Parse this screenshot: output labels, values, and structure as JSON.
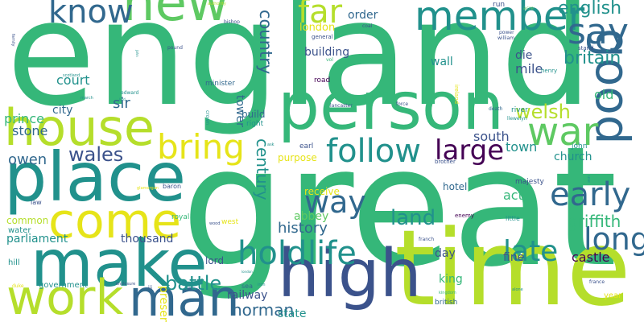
{
  "palette": {
    "dark_purple": "#440154",
    "indigo": "#3b528b",
    "blue": "#31688e",
    "teal": "#21918c",
    "green": "#35b779",
    "light_green": "#5ec962",
    "yellow_green": "#b5de2b",
    "yellow": "#e6e419"
  },
  "words": [
    {
      "text": "england",
      "color": "#35b779"
    },
    {
      "text": "great",
      "color": "#35b779"
    },
    {
      "text": "time",
      "color": "#b5de2b"
    },
    {
      "text": "person",
      "color": "#35b779"
    },
    {
      "text": "house",
      "color": "#b5de2b"
    },
    {
      "text": "place",
      "color": "#21918c"
    },
    {
      "text": "make",
      "color": "#21918c"
    },
    {
      "text": "high",
      "color": "#3b528b"
    },
    {
      "text": "come",
      "color": "#e6e419"
    },
    {
      "text": "work",
      "color": "#b5de2b"
    },
    {
      "text": "man",
      "color": "#31688e"
    },
    {
      "text": "new",
      "color": "#5ec962"
    },
    {
      "text": "good",
      "color": "#31688e"
    },
    {
      "text": "member",
      "color": "#21918c"
    },
    {
      "text": "war",
      "color": "#5ec962"
    },
    {
      "text": "follow",
      "color": "#21918c"
    },
    {
      "text": "hold",
      "color": "#21918c"
    },
    {
      "text": "life",
      "color": "#21918c"
    },
    {
      "text": "far",
      "color": "#b5de2b"
    },
    {
      "text": "say",
      "color": "#31688e"
    },
    {
      "text": "know",
      "color": "#31688e"
    },
    {
      "text": "bring",
      "color": "#e6e419"
    },
    {
      "text": "large",
      "color": "#440154"
    },
    {
      "text": "early",
      "color": "#31688e"
    },
    {
      "text": "long",
      "color": "#31688e"
    },
    {
      "text": "late",
      "color": "#21918c"
    },
    {
      "text": "way",
      "color": "#31688e"
    },
    {
      "text": "country",
      "color": "#31688e"
    },
    {
      "text": "english",
      "color": "#21918c"
    },
    {
      "text": "britain",
      "color": "#21918c"
    },
    {
      "text": "wales",
      "color": "#3b528b"
    },
    {
      "text": "land",
      "color": "#21918c"
    },
    {
      "text": "welsh",
      "color": "#b5de2b"
    },
    {
      "text": "battle",
      "color": "#21918c"
    },
    {
      "text": "history",
      "color": "#31688e"
    },
    {
      "text": "griffith",
      "color": "#35b779"
    },
    {
      "text": "century",
      "color": "#21918c"
    },
    {
      "text": "norman",
      "color": "#31688e"
    },
    {
      "text": "owen",
      "color": "#31688e"
    },
    {
      "text": "prince",
      "color": "#35b779"
    },
    {
      "text": "stone",
      "color": "#31688e"
    },
    {
      "text": "court",
      "color": "#21918c"
    },
    {
      "text": "sir",
      "color": "#31688e"
    },
    {
      "text": "city",
      "color": "#31688e"
    },
    {
      "text": "parliament",
      "color": "#21918c"
    },
    {
      "text": "thousand",
      "color": "#3b528b"
    },
    {
      "text": "south",
      "color": "#3b528b"
    },
    {
      "text": "town",
      "color": "#21918c"
    },
    {
      "text": "church",
      "color": "#21918c"
    },
    {
      "text": "act",
      "color": "#35b779"
    },
    {
      "text": "castle",
      "color": "#440154"
    },
    {
      "text": "old",
      "color": "#35b779"
    },
    {
      "text": "mile",
      "color": "#3b528b"
    },
    {
      "text": "die",
      "color": "#3b528b"
    },
    {
      "text": "order",
      "color": "#31688e"
    },
    {
      "text": "london",
      "color": "#e6e419"
    },
    {
      "text": "building",
      "color": "#3b528b"
    },
    {
      "text": "wall",
      "color": "#21918c"
    },
    {
      "text": "tower",
      "color": "#31688e"
    },
    {
      "text": "build",
      "color": "#31688e"
    },
    {
      "text": "purpose",
      "color": "#e6e419"
    },
    {
      "text": "receive",
      "color": "#e6e419"
    },
    {
      "text": "abbey",
      "color": "#5ec962"
    },
    {
      "text": "hotel",
      "color": "#31688e"
    },
    {
      "text": "day",
      "color": "#3b528b"
    },
    {
      "text": "king",
      "color": "#35b779"
    },
    {
      "text": "fine",
      "color": "#3b528b"
    },
    {
      "text": "railway",
      "color": "#3b528b"
    },
    {
      "text": "state",
      "color": "#21918c"
    },
    {
      "text": "lord",
      "color": "#3b528b"
    },
    {
      "text": "present",
      "color": "#e6e419"
    },
    {
      "text": "common",
      "color": "#b5de2b"
    },
    {
      "text": "water",
      "color": "#21918c"
    },
    {
      "text": "hill",
      "color": "#21918c"
    },
    {
      "text": "government",
      "color": "#21918c"
    },
    {
      "text": "british",
      "color": "#31688e"
    },
    {
      "text": "year",
      "color": "#e6e419"
    },
    {
      "text": "road",
      "color": "#440154"
    },
    {
      "text": "minister",
      "color": "#31688e"
    },
    {
      "text": "earl",
      "color": "#3b528b"
    },
    {
      "text": "right",
      "color": "#21918c"
    },
    {
      "text": "john",
      "color": "#21918c"
    },
    {
      "text": "majesty",
      "color": "#3b528b"
    },
    {
      "text": "royal",
      "color": "#35b779"
    },
    {
      "text": "west",
      "color": "#e6e419"
    },
    {
      "text": "law",
      "color": "#3b528b"
    },
    {
      "text": "baron",
      "color": "#3b528b"
    },
    {
      "text": "little",
      "color": "#21918c"
    },
    {
      "text": "enemy",
      "color": "#440154"
    },
    {
      "text": "general",
      "color": "#3b528b"
    },
    {
      "text": "run",
      "color": "#3b528b"
    },
    {
      "text": "stand",
      "color": "#3b528b"
    },
    {
      "text": "william",
      "color": "#3b528b"
    },
    {
      "text": "power",
      "color": "#3b528b"
    },
    {
      "text": "henry",
      "color": "#21918c"
    },
    {
      "text": "death",
      "color": "#31688e"
    },
    {
      "text": "river",
      "color": "#21918c"
    },
    {
      "text": "llewelyn",
      "color": "#21918c"
    },
    {
      "text": "force",
      "color": "#3b528b"
    },
    {
      "text": "lancaster",
      "color": "#3b528b"
    },
    {
      "text": "brother",
      "color": "#3b528b"
    },
    {
      "text": "france",
      "color": "#3b528b"
    },
    {
      "text": "franch",
      "color": "#3b528b"
    },
    {
      "text": "kingdom",
      "color": "#35b779"
    },
    {
      "text": "scotland",
      "color": "#21918c"
    },
    {
      "text": "edward",
      "color": "#21918c"
    },
    {
      "text": "march",
      "color": "#21918c"
    },
    {
      "text": "pound",
      "color": "#3b528b"
    },
    {
      "text": "bishop",
      "color": "#3b528b"
    },
    {
      "text": "authority",
      "color": "#b5de2b"
    },
    {
      "text": "coal",
      "color": "#3b528b"
    },
    {
      "text": "acre",
      "color": "#5ec962"
    },
    {
      "text": "family",
      "color": "#3b528b"
    },
    {
      "text": "crown",
      "color": "#21918c"
    },
    {
      "text": "ireland",
      "color": "#e6e419"
    },
    {
      "text": "vol",
      "color": "#35b779"
    },
    {
      "text": "glamorgan",
      "color": "#e6e419"
    },
    {
      "text": "duke",
      "color": "#e6e419"
    },
    {
      "text": "enclosure",
      "color": "#3b528b"
    },
    {
      "text": "iii",
      "color": "#3b528b"
    },
    {
      "text": "sea",
      "color": "#31688e"
    },
    {
      "text": "iron",
      "color": "#21918c"
    },
    {
      "text": "wood",
      "color": "#3b528b"
    },
    {
      "text": "ask",
      "color": "#21918c"
    },
    {
      "text": "alone",
      "color": "#21918c"
    },
    {
      "text": "london",
      "color": "#21918c"
    },
    {
      "text": "lord",
      "color": "#21918c"
    },
    {
      "text": "use",
      "color": "#21918c"
    },
    {
      "text": "john",
      "color": "#21918c"
    }
  ]
}
